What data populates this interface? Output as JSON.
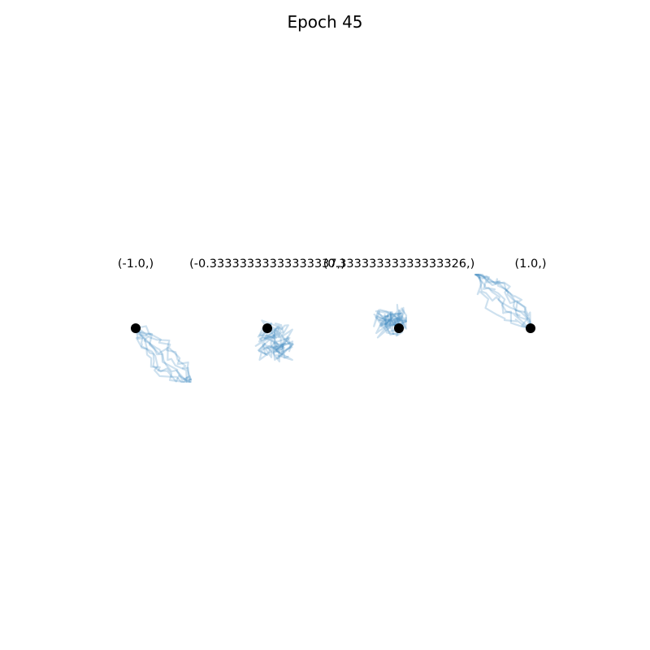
{
  "figure": {
    "title": "Epoch 45",
    "line_color": "#1f77b4",
    "marker_color": "#000000",
    "background": "#ffffff"
  },
  "chart_data": [
    {
      "type": "line",
      "title": "(-1.0,)",
      "start": [
        0,
        0
      ],
      "end": [
        1,
        -1
      ],
      "trajectories": 8
    },
    {
      "type": "line",
      "title": "(-0.33333333333333337,)",
      "start": [
        0,
        0
      ],
      "end": [
        0.3,
        -0.45
      ],
      "trajectories": 8
    },
    {
      "type": "line",
      "title": "(0.33333333333333326,)",
      "start": [
        0,
        0
      ],
      "end": [
        -0.3,
        0.2
      ],
      "trajectories": 8
    },
    {
      "type": "line",
      "title": "(1.0,)",
      "start": [
        0,
        0
      ],
      "end": [
        -1,
        1
      ],
      "trajectories": 8
    }
  ]
}
